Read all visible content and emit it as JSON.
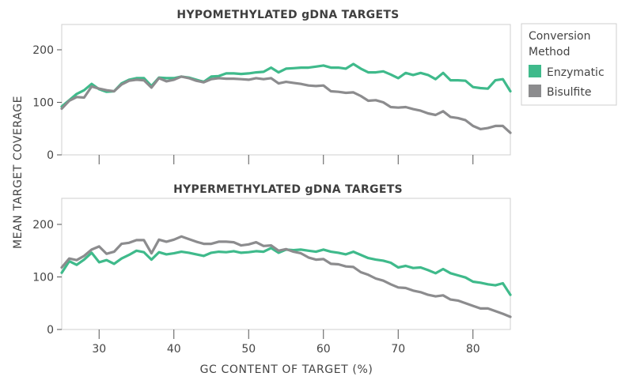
{
  "chart_data": {
    "type": "line",
    "ylabel": "MEAN TARGET COVERAGE",
    "xlabel": "GC CONTENT OF TARGET (%)",
    "xlim": [
      25,
      85
    ],
    "x_ticks": [
      "30",
      "40",
      "50",
      "60",
      "70",
      "80"
    ],
    "legend": {
      "title_line1": "Conversion",
      "title_line2": "Method",
      "position": "right",
      "entries": [
        {
          "name": "Enzymatic",
          "color": "#3fba8b"
        },
        {
          "name": "Bisulfite",
          "color": "#8c8c8e"
        }
      ]
    },
    "x": [
      25,
      26,
      27,
      28,
      29,
      30,
      31,
      32,
      33,
      34,
      35,
      36,
      37,
      38,
      39,
      40,
      41,
      42,
      43,
      44,
      45,
      46,
      47,
      48,
      49,
      50,
      51,
      52,
      53,
      54,
      55,
      56,
      57,
      58,
      59,
      60,
      61,
      62,
      63,
      64,
      65,
      66,
      67,
      68,
      69,
      70,
      71,
      72,
      73,
      74,
      75,
      76,
      77,
      78,
      79,
      80,
      81,
      82,
      83,
      84,
      85
    ],
    "panels": [
      {
        "title": "HYPOMETHYLATED gDNA TARGETS",
        "ylim": [
          0,
          250
        ],
        "y_ticks": [
          "0",
          "100",
          "200"
        ],
        "series": [
          {
            "name": "Enzymatic",
            "color": "#3fba8b",
            "values": [
              92,
              104,
              116,
              123,
              135,
              125,
              120,
              121,
              136,
              143,
              146,
              146,
              131,
              147,
              146,
              146,
              149,
              147,
              143,
              139,
              149,
              150,
              155,
              155,
              154,
              155,
              157,
              158,
              166,
              157,
              164,
              165,
              166,
              166,
              168,
              170,
              166,
              166,
              164,
              173,
              164,
              157,
              157,
              159,
              153,
              146,
              156,
              152,
              156,
              152,
              144,
              156,
              142,
              142,
              141,
              129,
              127,
              126,
              142,
              144,
              121
            ]
          },
          {
            "name": "Bisulfite",
            "color": "#8c8c8e",
            "values": [
              88,
              103,
              110,
              109,
              130,
              126,
              123,
              121,
              134,
              141,
              143,
              142,
              128,
              146,
              140,
              143,
              149,
              146,
              141,
              138,
              144,
              146,
              145,
              145,
              144,
              143,
              146,
              144,
              146,
              136,
              139,
              137,
              135,
              132,
              131,
              132,
              121,
              120,
              118,
              119,
              112,
              103,
              104,
              100,
              91,
              90,
              91,
              87,
              84,
              79,
              76,
              83,
              72,
              70,
              66,
              55,
              49,
              51,
              55,
              55,
              42
            ]
          }
        ]
      },
      {
        "title": "HYPERMETHYLATED gDNA TARGETS",
        "ylim": [
          0,
          250
        ],
        "y_ticks": [
          "0",
          "100",
          "200"
        ],
        "series": [
          {
            "name": "Enzymatic",
            "color": "#3fba8b",
            "values": [
              108,
              130,
              123,
              133,
              146,
              128,
              132,
              125,
              135,
              142,
              150,
              147,
              133,
              147,
              143,
              145,
              148,
              146,
              143,
              140,
              146,
              148,
              147,
              149,
              146,
              147,
              149,
              148,
              155,
              146,
              152,
              151,
              152,
              150,
              148,
              152,
              148,
              146,
              143,
              148,
              142,
              136,
              133,
              131,
              127,
              118,
              121,
              117,
              118,
              113,
              107,
              115,
              107,
              103,
              99,
              91,
              89,
              86,
              84,
              88,
              66
            ]
          },
          {
            "name": "Bisulfite",
            "color": "#8c8c8e",
            "values": [
              118,
              135,
              132,
              140,
              152,
              158,
              144,
              148,
              163,
              165,
              170,
              170,
              145,
              171,
              167,
              171,
              177,
              172,
              167,
              163,
              163,
              167,
              167,
              166,
              160,
              162,
              166,
              159,
              160,
              150,
              153,
              148,
              145,
              137,
              133,
              134,
              125,
              124,
              120,
              119,
              109,
              104,
              97,
              93,
              86,
              80,
              79,
              74,
              71,
              66,
              63,
              65,
              57,
              55,
              50,
              45,
              40,
              40,
              35,
              30,
              24
            ]
          }
        ]
      }
    ]
  }
}
